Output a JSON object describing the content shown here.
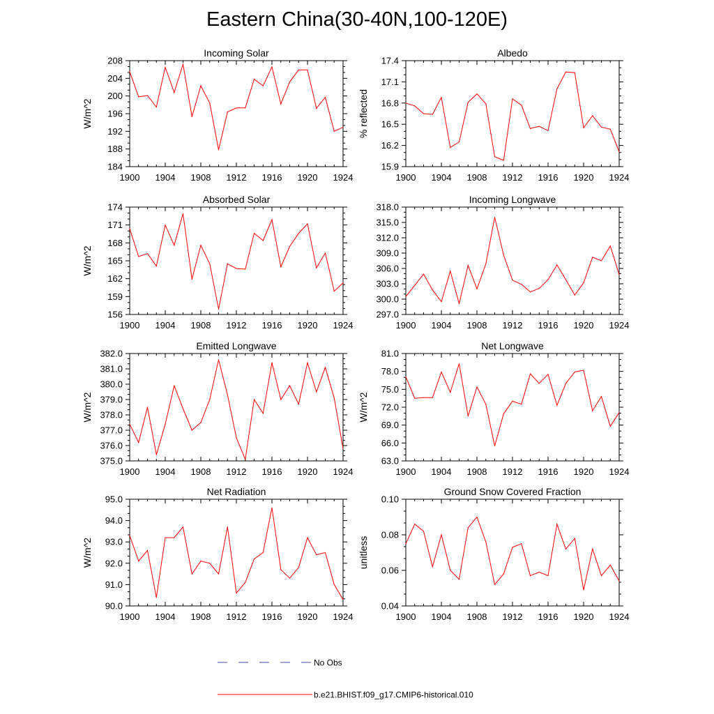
{
  "figure": {
    "title": "Eastern China(30-40N,100-120E)"
  },
  "colors": {
    "model": "#ff0000",
    "obs": "#4a4aa8",
    "axis": "#000000"
  },
  "legend": {
    "obs_label": "No Obs",
    "model_label": "b.e21.BHIST.f09_g17.CMIP6-historical.010"
  },
  "chart_data": [
    {
      "type": "line",
      "title": "Incoming Solar",
      "ylabel": "W/m^2",
      "xlim": [
        1900,
        1924
      ],
      "ylim": [
        184,
        208
      ],
      "xticks": [
        1900,
        1904,
        1908,
        1912,
        1916,
        1920,
        1924
      ],
      "yticks": [
        184,
        188,
        192,
        196,
        200,
        204,
        208
      ],
      "ytick_labels": [
        "184",
        "188",
        "192",
        "196",
        "200",
        "204",
        "208"
      ],
      "series": [
        {
          "name": "b.e21.BHIST.f09_g17.CMIP6-historical.010",
          "x": [
            1900,
            1901,
            1902,
            1903,
            1904,
            1905,
            1906,
            1907,
            1908,
            1909,
            1910,
            1911,
            1912,
            1913,
            1914,
            1915,
            1916,
            1917,
            1918,
            1919,
            1920,
            1921,
            1922,
            1923,
            1924
          ],
          "y": [
            205.5,
            199.8,
            200.1,
            197.5,
            206.5,
            200.8,
            207.2,
            195.3,
            202.3,
            198.4,
            187.8,
            196.4,
            197.3,
            197.3,
            203.8,
            202.3,
            206.6,
            198.2,
            203.2,
            205.9,
            205.9,
            197.2,
            199.7,
            192.0,
            192.9
          ]
        }
      ]
    },
    {
      "type": "line",
      "title": "Albedo",
      "ylabel": "% reflected",
      "xlim": [
        1900,
        1924
      ],
      "ylim": [
        15.9,
        17.4
      ],
      "xticks": [
        1900,
        1904,
        1908,
        1912,
        1916,
        1920,
        1924
      ],
      "yticks": [
        15.9,
        16.2,
        16.5,
        16.8,
        17.1,
        17.4
      ],
      "ytick_labels": [
        "15.9",
        "16.2",
        "16.5",
        "16.8",
        "17.1",
        "17.4"
      ],
      "series": [
        {
          "name": "b.e21.BHIST.f09_g17.CMIP6-historical.010",
          "x": [
            1900,
            1901,
            1902,
            1903,
            1904,
            1905,
            1906,
            1907,
            1908,
            1909,
            1910,
            1911,
            1912,
            1913,
            1914,
            1915,
            1916,
            1917,
            1918,
            1919,
            1920,
            1921,
            1922,
            1923,
            1924
          ],
          "y": [
            16.8,
            16.76,
            16.65,
            16.64,
            16.88,
            16.17,
            16.25,
            16.81,
            16.93,
            16.79,
            16.04,
            15.99,
            16.86,
            16.77,
            16.44,
            16.47,
            16.41,
            17.0,
            17.24,
            17.23,
            16.45,
            16.62,
            16.46,
            16.43,
            16.11
          ]
        }
      ]
    },
    {
      "type": "line",
      "title": "Absorbed Solar",
      "ylabel": "W/m^2",
      "xlim": [
        1900,
        1924
      ],
      "ylim": [
        156,
        174
      ],
      "xticks": [
        1900,
        1904,
        1908,
        1912,
        1916,
        1920,
        1924
      ],
      "yticks": [
        156,
        159,
        162,
        165,
        168,
        171,
        174
      ],
      "ytick_labels": [
        "156",
        "159",
        "162",
        "165",
        "168",
        "171",
        "174"
      ],
      "series": [
        {
          "name": "b.e21.BHIST.f09_g17.CMIP6-historical.010",
          "x": [
            1900,
            1901,
            1902,
            1903,
            1904,
            1905,
            1906,
            1907,
            1908,
            1909,
            1910,
            1911,
            1912,
            1913,
            1914,
            1915,
            1916,
            1917,
            1918,
            1919,
            1920,
            1921,
            1922,
            1923,
            1924
          ],
          "y": [
            170.4,
            165.7,
            166.2,
            164.1,
            171.0,
            167.6,
            172.9,
            161.9,
            167.6,
            164.5,
            156.9,
            164.5,
            163.7,
            163.6,
            169.6,
            168.4,
            171.9,
            164.0,
            167.4,
            169.6,
            171.2,
            163.8,
            166.3,
            159.9,
            161.3
          ]
        }
      ]
    },
    {
      "type": "line",
      "title": "Incoming Longwave",
      "ylabel": "",
      "xlim": [
        1900,
        1924
      ],
      "ylim": [
        297,
        318
      ],
      "xticks": [
        1900,
        1904,
        1908,
        1912,
        1916,
        1920,
        1924
      ],
      "yticks": [
        297,
        300,
        303,
        306,
        309,
        312,
        315,
        318
      ],
      "ytick_labels": [
        "297.0",
        "300.0",
        "303.0",
        "306.0",
        "309.0",
        "312.0",
        "315.0",
        "318.0"
      ],
      "series": [
        {
          "name": "b.e21.BHIST.f09_g17.CMIP6-historical.010",
          "x": [
            1900,
            1901,
            1902,
            1903,
            1904,
            1905,
            1906,
            1907,
            1908,
            1909,
            1910,
            1911,
            1912,
            1913,
            1914,
            1915,
            1916,
            1917,
            1918,
            1919,
            1920,
            1921,
            1922,
            1923,
            1924
          ],
          "y": [
            300.5,
            302.7,
            304.9,
            301.8,
            299.5,
            305.5,
            299.1,
            306.6,
            302.0,
            306.9,
            316.0,
            308.6,
            303.7,
            302.9,
            301.4,
            302.1,
            303.8,
            306.7,
            303.8,
            300.8,
            303.2,
            308.2,
            307.5,
            310.4,
            304.8
          ]
        }
      ]
    },
    {
      "type": "line",
      "title": "Emitted Longwave",
      "ylabel": "W/m^2",
      "xlim": [
        1900,
        1924
      ],
      "ylim": [
        375,
        382
      ],
      "xticks": [
        1900,
        1904,
        1908,
        1912,
        1916,
        1920,
        1924
      ],
      "yticks": [
        375,
        376,
        377,
        378,
        379,
        380,
        381,
        382
      ],
      "ytick_labels": [
        "375.0",
        "376.0",
        "377.0",
        "378.0",
        "379.0",
        "380.0",
        "381.0",
        "382.0"
      ],
      "series": [
        {
          "name": "b.e21.BHIST.f09_g17.CMIP6-historical.010",
          "x": [
            1900,
            1901,
            1902,
            1903,
            1904,
            1905,
            1906,
            1907,
            1908,
            1909,
            1910,
            1911,
            1912,
            1913,
            1914,
            1915,
            1916,
            1917,
            1918,
            1919,
            1920,
            1921,
            1922,
            1923,
            1924
          ],
          "y": [
            377.4,
            376.2,
            378.5,
            375.4,
            377.4,
            379.9,
            378.4,
            377.0,
            377.5,
            379.0,
            381.6,
            379.3,
            376.5,
            375.1,
            379.0,
            378.1,
            381.4,
            379.0,
            379.9,
            378.7,
            381.4,
            379.5,
            381.1,
            379.1,
            375.8
          ]
        }
      ]
    },
    {
      "type": "line",
      "title": "Net Longwave",
      "ylabel": "W/m^2",
      "xlim": [
        1900,
        1924
      ],
      "ylim": [
        63,
        81
      ],
      "xticks": [
        1900,
        1904,
        1908,
        1912,
        1916,
        1920,
        1924
      ],
      "yticks": [
        63,
        66,
        69,
        72,
        75,
        78,
        81
      ],
      "ytick_labels": [
        "63.0",
        "66.0",
        "69.0",
        "72.0",
        "75.0",
        "78.0",
        "81.0"
      ],
      "series": [
        {
          "name": "b.e21.BHIST.f09_g17.CMIP6-historical.010",
          "x": [
            1900,
            1901,
            1902,
            1903,
            1904,
            1905,
            1906,
            1907,
            1908,
            1909,
            1910,
            1911,
            1912,
            1913,
            1914,
            1915,
            1916,
            1917,
            1918,
            1919,
            1920,
            1921,
            1922,
            1923,
            1924
          ],
          "y": [
            77.1,
            73.5,
            73.6,
            73.6,
            77.9,
            74.5,
            79.3,
            70.5,
            75.4,
            72.5,
            65.5,
            70.9,
            73.0,
            72.5,
            77.6,
            76.0,
            77.5,
            72.3,
            76.0,
            77.9,
            78.2,
            71.4,
            73.8,
            68.8,
            71.1
          ]
        }
      ]
    },
    {
      "type": "line",
      "title": "Net Radiation",
      "ylabel": "W/m^2",
      "xlim": [
        1900,
        1924
      ],
      "ylim": [
        90,
        95
      ],
      "xticks": [
        1900,
        1904,
        1908,
        1912,
        1916,
        1920,
        1924
      ],
      "yticks": [
        90,
        91,
        92,
        93,
        94,
        95
      ],
      "ytick_labels": [
        "90.0",
        "91.0",
        "92.0",
        "93.0",
        "94.0",
        "95.0"
      ],
      "series": [
        {
          "name": "b.e21.BHIST.f09_g17.CMIP6-historical.010",
          "x": [
            1900,
            1901,
            1902,
            1903,
            1904,
            1905,
            1906,
            1907,
            1908,
            1909,
            1910,
            1911,
            1912,
            1913,
            1914,
            1915,
            1916,
            1917,
            1918,
            1919,
            1920,
            1921,
            1922,
            1923,
            1924
          ],
          "y": [
            93.3,
            92.1,
            92.6,
            90.4,
            93.2,
            93.2,
            93.7,
            91.5,
            92.1,
            92.0,
            91.5,
            93.7,
            90.6,
            91.1,
            92.2,
            92.5,
            94.6,
            91.7,
            91.3,
            91.8,
            93.2,
            92.4,
            92.5,
            91.0,
            90.3
          ]
        }
      ]
    },
    {
      "type": "line",
      "title": "Ground Snow Covered Fraction",
      "ylabel": "unitless",
      "xlim": [
        1900,
        1924
      ],
      "ylim": [
        0.04,
        0.1
      ],
      "xticks": [
        1900,
        1904,
        1908,
        1912,
        1916,
        1920,
        1924
      ],
      "yticks": [
        0.04,
        0.06,
        0.08,
        0.1
      ],
      "ytick_labels": [
        "0.04",
        "0.06",
        "0.08",
        "0.10"
      ],
      "series": [
        {
          "name": "b.e21.BHIST.f09_g17.CMIP6-historical.010",
          "x": [
            1900,
            1901,
            1902,
            1903,
            1904,
            1905,
            1906,
            1907,
            1908,
            1909,
            1910,
            1911,
            1912,
            1913,
            1914,
            1915,
            1916,
            1917,
            1918,
            1919,
            1920,
            1921,
            1922,
            1923,
            1924
          ],
          "y": [
            0.075,
            0.086,
            0.082,
            0.062,
            0.08,
            0.06,
            0.055,
            0.084,
            0.09,
            0.076,
            0.052,
            0.058,
            0.073,
            0.075,
            0.057,
            0.059,
            0.057,
            0.086,
            0.072,
            0.078,
            0.049,
            0.072,
            0.057,
            0.063,
            0.054
          ]
        }
      ]
    }
  ]
}
